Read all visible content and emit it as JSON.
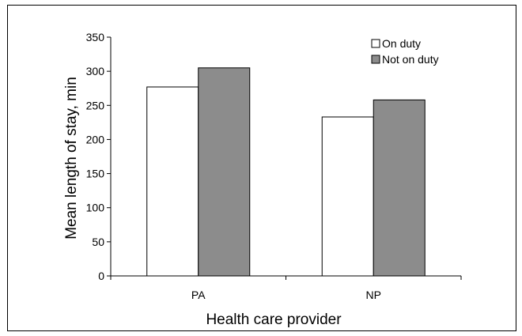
{
  "chart_data": {
    "type": "bar",
    "title": "",
    "xlabel": "Health care provider",
    "ylabel": "Mean length of stay, min",
    "categories": [
      "PA",
      "NP"
    ],
    "series": [
      {
        "name": "On duty",
        "values": [
          277,
          233
        ],
        "color": "#ffffff"
      },
      {
        "name": "Not on duty",
        "values": [
          305,
          258
        ],
        "color": "#8c8c8c"
      }
    ],
    "ylim": [
      0,
      350
    ],
    "yticks": [
      0,
      50,
      100,
      150,
      200,
      250,
      300,
      350
    ],
    "grid": false,
    "legend_position": "top-right"
  }
}
